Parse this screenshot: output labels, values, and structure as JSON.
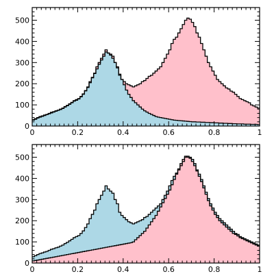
{
  "chart_data": [
    {
      "type": "area",
      "title": "",
      "xlabel": "",
      "ylabel": "",
      "xlim": [
        0,
        1
      ],
      "ylim": [
        0,
        560
      ],
      "x_ticks": [
        0,
        0.2,
        0.4,
        0.6,
        0.8,
        1
      ],
      "x_tick_labels": [
        "0",
        "0.2",
        "0.4",
        "0.6",
        "0.8",
        "1"
      ],
      "y_ticks": [
        0,
        100,
        200,
        300,
        400,
        500
      ],
      "y_tick_labels": [
        "0",
        "100",
        "200",
        "300",
        "400",
        "500"
      ],
      "bins": 100,
      "series": [
        {
          "name": "pink",
          "color": "#ffc0cb",
          "values": [
            30,
            35,
            40,
            45,
            48,
            52,
            55,
            60,
            65,
            68,
            72,
            75,
            80,
            85,
            92,
            98,
            105,
            112,
            120,
            125,
            130,
            140,
            152,
            168,
            185,
            210,
            230,
            250,
            280,
            300,
            320,
            340,
            360,
            345,
            340,
            330,
            300,
            280,
            240,
            220,
            210,
            200,
            195,
            190,
            185,
            190,
            195,
            200,
            210,
            215,
            225,
            235,
            240,
            250,
            260,
            270,
            280,
            300,
            320,
            340,
            360,
            390,
            410,
            420,
            440,
            460,
            480,
            500,
            510,
            505,
            490,
            470,
            440,
            420,
            390,
            360,
            330,
            300,
            280,
            260,
            240,
            220,
            210,
            200,
            190,
            180,
            175,
            165,
            160,
            150,
            140,
            130,
            125,
            120,
            115,
            110,
            100,
            95,
            90,
            85
          ]
        },
        {
          "name": "blue",
          "color": "#add8e6",
          "values": [
            28,
            32,
            38,
            42,
            46,
            50,
            54,
            58,
            62,
            66,
            70,
            74,
            78,
            83,
            90,
            96,
            103,
            110,
            118,
            122,
            128,
            138,
            150,
            166,
            182,
            205,
            228,
            248,
            270,
            292,
            312,
            330,
            350,
            345,
            335,
            320,
            300,
            275,
            245,
            220,
            195,
            170,
            150,
            135,
            120,
            110,
            100,
            90,
            80,
            72,
            66,
            60,
            55,
            50,
            45,
            42,
            40,
            38,
            36,
            34,
            32,
            30,
            28,
            27,
            26,
            25,
            24,
            23,
            22,
            21,
            20,
            20,
            19,
            19,
            18,
            18,
            17,
            17,
            16,
            16,
            15,
            15,
            14,
            14,
            13,
            13,
            12,
            12,
            11,
            11,
            10,
            10,
            10,
            9,
            9,
            9,
            8,
            8,
            8,
            7
          ]
        }
      ]
    },
    {
      "type": "area",
      "title": "",
      "xlabel": "",
      "ylabel": "",
      "xlim": [
        0,
        1
      ],
      "ylim": [
        0,
        560
      ],
      "x_ticks": [
        0,
        0.2,
        0.4,
        0.6,
        0.8,
        1
      ],
      "x_tick_labels": [
        "0",
        "0.2",
        "0.4",
        "0.6",
        "0.8",
        "1"
      ],
      "y_ticks": [
        0,
        100,
        200,
        300,
        400,
        500
      ],
      "y_tick_labels": [
        "0",
        "100",
        "200",
        "300",
        "400",
        "500"
      ],
      "bins": 100,
      "series": [
        {
          "name": "blue",
          "color": "#add8e6",
          "values": [
            30,
            35,
            40,
            45,
            48,
            52,
            55,
            60,
            65,
            68,
            72,
            75,
            80,
            85,
            92,
            98,
            105,
            112,
            120,
            125,
            130,
            140,
            152,
            168,
            185,
            210,
            230,
            250,
            280,
            300,
            320,
            340,
            365,
            350,
            340,
            330,
            300,
            280,
            240,
            225,
            215,
            205,
            195,
            190,
            185,
            190,
            195,
            200,
            205,
            215,
            220,
            230,
            240,
            250,
            260,
            270,
            280,
            300,
            320,
            340,
            365,
            390,
            410,
            425,
            440,
            460,
            480,
            500,
            505,
            500,
            490,
            470,
            440,
            420,
            395,
            365,
            335,
            305,
            280,
            260,
            240,
            225,
            210,
            200,
            190,
            180,
            170,
            160,
            150,
            140,
            135,
            125,
            120,
            115,
            110,
            105,
            100,
            95,
            90,
            85
          ]
        },
        {
          "name": "pink",
          "color": "#ffc0cb",
          "values": [
            10,
            12,
            14,
            16,
            18,
            20,
            22,
            24,
            26,
            28,
            30,
            32,
            34,
            36,
            38,
            40,
            42,
            44,
            46,
            48,
            50,
            52,
            54,
            56,
            58,
            60,
            62,
            64,
            66,
            68,
            70,
            72,
            74,
            76,
            78,
            80,
            82,
            84,
            86,
            88,
            90,
            92,
            94,
            96,
            100,
            110,
            120,
            130,
            140,
            150,
            165,
            180,
            195,
            210,
            225,
            245,
            265,
            285,
            305,
            325,
            345,
            370,
            395,
            420,
            445,
            470,
            490,
            505,
            500,
            495,
            480,
            460,
            435,
            410,
            385,
            355,
            325,
            295,
            270,
            250,
            230,
            215,
            200,
            190,
            180,
            170,
            160,
            150,
            140,
            135,
            128,
            120,
            115,
            110,
            105,
            100,
            95,
            90,
            85,
            80
          ]
        }
      ]
    }
  ]
}
